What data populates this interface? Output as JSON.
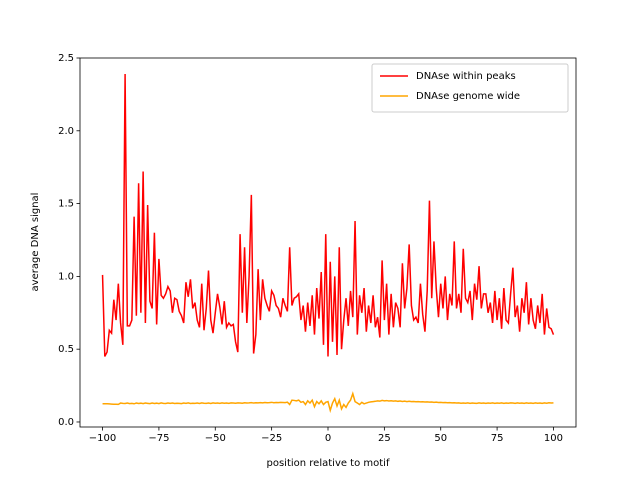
{
  "chart_data": {
    "type": "line",
    "xlabel": "position relative to motif",
    "ylabel": "average DNA signal",
    "legend": "upper right",
    "xlim": [
      -110,
      110
    ],
    "ylim": [
      -0.0345,
      2.5
    ],
    "xticks": [
      {
        "value": -100,
        "label": "−100"
      },
      {
        "value": -75,
        "label": "−75"
      },
      {
        "value": -50,
        "label": "−50"
      },
      {
        "value": -25,
        "label": "−25"
      },
      0,
      25,
      50,
      75,
      100
    ],
    "yticks": [
      {
        "value": 0,
        "label": "0.0"
      },
      0.5,
      {
        "value": 1,
        "label": "1.0"
      },
      1.5,
      {
        "value": 2,
        "label": "2.0"
      },
      2.5
    ],
    "x": [
      -100,
      -99,
      -98,
      -97,
      -96,
      -95,
      -94,
      -93,
      -92,
      -91,
      -90,
      -89,
      -88,
      -87,
      -86,
      -85,
      -84,
      -83,
      -82,
      -81,
      -80,
      -79,
      -78,
      -77,
      -76,
      -75,
      -74,
      -73,
      -72,
      -71,
      -70,
      -69,
      -68,
      -67,
      -66,
      -65,
      -64,
      -63,
      -62,
      -61,
      -60,
      -59,
      -58,
      -57,
      -56,
      -55,
      -54,
      -53,
      -52,
      -51,
      -50,
      -49,
      -48,
      -47,
      -46,
      -45,
      -44,
      -43,
      -42,
      -41,
      -40,
      -39,
      -38,
      -37,
      -36,
      -35,
      -34,
      -33,
      -32,
      -31,
      -30,
      -29,
      -28,
      -27,
      -26,
      -25,
      -24,
      -23,
      -22,
      -21,
      -20,
      -19,
      -18,
      -17,
      -16,
      -15,
      -14,
      -13,
      -12,
      -11,
      -10,
      -9,
      -8,
      -7,
      -6,
      -5,
      -4,
      -3,
      -2,
      -1,
      0,
      1,
      2,
      3,
      4,
      5,
      6,
      7,
      8,
      9,
      10,
      11,
      12,
      13,
      14,
      15,
      16,
      17,
      18,
      19,
      20,
      21,
      22,
      23,
      24,
      25,
      26,
      27,
      28,
      29,
      30,
      31,
      32,
      33,
      34,
      35,
      36,
      37,
      38,
      39,
      40,
      41,
      42,
      43,
      44,
      45,
      46,
      47,
      48,
      49,
      50,
      51,
      52,
      53,
      54,
      55,
      56,
      57,
      58,
      59,
      60,
      61,
      62,
      63,
      64,
      65,
      66,
      67,
      68,
      69,
      70,
      71,
      72,
      73,
      74,
      75,
      76,
      77,
      78,
      79,
      80,
      81,
      82,
      83,
      84,
      85,
      86,
      87,
      88,
      89,
      90,
      91,
      92,
      93,
      94,
      95,
      96,
      97,
      98,
      99,
      100
    ],
    "series": [
      {
        "name": "DNAse within peaks",
        "color": "#ff0000",
        "values": [
          1.01,
          0.45,
          0.48,
          0.63,
          0.61,
          0.84,
          0.7,
          0.95,
          0.68,
          0.53,
          2.39,
          0.66,
          0.66,
          0.7,
          1.41,
          0.73,
          1.64,
          0.75,
          1.72,
          0.68,
          1.49,
          0.83,
          0.78,
          1.3,
          0.67,
          1.12,
          0.87,
          0.85,
          0.88,
          0.93,
          0.9,
          0.75,
          0.85,
          0.84,
          0.76,
          0.73,
          0.68,
          0.96,
          0.86,
          0.98,
          0.78,
          0.82,
          0.7,
          0.65,
          0.95,
          0.63,
          0.78,
          1.04,
          0.7,
          0.61,
          0.75,
          0.88,
          0.79,
          0.67,
          0.83,
          0.65,
          0.68,
          0.66,
          0.67,
          0.55,
          0.48,
          1.29,
          0.75,
          1.2,
          0.68,
          1.0,
          1.56,
          0.47,
          0.6,
          1.05,
          0.7,
          0.98,
          0.85,
          0.8,
          0.76,
          0.9,
          0.87,
          0.8,
          0.78,
          0.72,
          0.85,
          0.8,
          0.76,
          1.2,
          0.8,
          0.85,
          0.86,
          0.88,
          0.7,
          0.8,
          0.62,
          0.82,
          0.66,
          0.87,
          0.6,
          0.92,
          0.71,
          1.03,
          0.53,
          1.29,
          0.45,
          1.1,
          0.55,
          1.0,
          0.46,
          1.2,
          0.5,
          0.7,
          0.85,
          0.66,
          0.9,
          0.72,
          1.38,
          0.6,
          0.87,
          0.75,
          0.92,
          0.62,
          0.8,
          0.68,
          0.87,
          0.65,
          0.72,
          0.58,
          1.11,
          0.7,
          0.95,
          0.6,
          0.88,
          0.65,
          0.82,
          0.78,
          0.65,
          1.09,
          0.78,
          0.92,
          1.22,
          0.8,
          0.7,
          0.72,
          0.68,
          0.95,
          0.74,
          0.62,
          0.9,
          1.52,
          0.85,
          1.24,
          0.92,
          0.72,
          0.95,
          0.78,
          1.0,
          0.7,
          0.88,
          0.8,
          1.24,
          0.78,
          0.88,
          0.75,
          1.19,
          0.85,
          0.82,
          0.9,
          0.7,
          0.95,
          0.84,
          1.07,
          0.78,
          0.88,
          0.88,
          0.75,
          0.82,
          0.68,
          0.9,
          0.7,
          0.85,
          0.64,
          0.92,
          0.7,
          0.68,
          0.88,
          1.06,
          0.72,
          0.8,
          0.62,
          0.85,
          0.75,
          0.96,
          0.67,
          0.85,
          0.7,
          0.64,
          0.8,
          0.68,
          0.88,
          0.6,
          0.78,
          0.65,
          0.64,
          0.6
        ]
      },
      {
        "name": "DNAse genome wide",
        "color": "#ffa500",
        "values": [
          0.125,
          0.125,
          0.125,
          0.124,
          0.123,
          0.122,
          0.122,
          0.121,
          0.13,
          0.128,
          0.127,
          0.13,
          0.126,
          0.128,
          0.125,
          0.13,
          0.127,
          0.129,
          0.126,
          0.13,
          0.128,
          0.126,
          0.13,
          0.127,
          0.129,
          0.126,
          0.131,
          0.128,
          0.127,
          0.13,
          0.128,
          0.13,
          0.127,
          0.129,
          0.128,
          0.126,
          0.13,
          0.128,
          0.131,
          0.127,
          0.129,
          0.128,
          0.13,
          0.127,
          0.131,
          0.129,
          0.128,
          0.13,
          0.127,
          0.131,
          0.129,
          0.13,
          0.128,
          0.131,
          0.129,
          0.13,
          0.128,
          0.131,
          0.13,
          0.129,
          0.131,
          0.13,
          0.129,
          0.132,
          0.13,
          0.131,
          0.133,
          0.13,
          0.132,
          0.131,
          0.133,
          0.131,
          0.134,
          0.132,
          0.133,
          0.135,
          0.132,
          0.134,
          0.133,
          0.135,
          0.134,
          0.133,
          0.136,
          0.12,
          0.15,
          0.148,
          0.145,
          0.15,
          0.135,
          0.14,
          0.12,
          0.145,
          0.13,
          0.15,
          0.105,
          0.14,
          0.125,
          0.145,
          0.12,
          0.135,
          0.14,
          0.08,
          0.13,
          0.16,
          0.11,
          0.15,
          0.09,
          0.12,
          0.1,
          0.13,
          0.15,
          0.195,
          0.14,
          0.13,
          0.12,
          0.135,
          0.125,
          0.13,
          0.135,
          0.138,
          0.14,
          0.142,
          0.145,
          0.143,
          0.148,
          0.145,
          0.147,
          0.144,
          0.146,
          0.143,
          0.145,
          0.142,
          0.144,
          0.141,
          0.143,
          0.14,
          0.142,
          0.14,
          0.141,
          0.139,
          0.14,
          0.138,
          0.139,
          0.137,
          0.138,
          0.136,
          0.137,
          0.135,
          0.136,
          0.134,
          0.135,
          0.133,
          0.134,
          0.132,
          0.133,
          0.131,
          0.132,
          0.13,
          0.131,
          0.129,
          0.13,
          0.129,
          0.131,
          0.128,
          0.13,
          0.129,
          0.128,
          0.131,
          0.129,
          0.13,
          0.128,
          0.13,
          0.129,
          0.131,
          0.128,
          0.13,
          0.129,
          0.131,
          0.128,
          0.13,
          0.129,
          0.131,
          0.13,
          0.128,
          0.131,
          0.129,
          0.13,
          0.128,
          0.131,
          0.129,
          0.13,
          0.128,
          0.131,
          0.129,
          0.13,
          0.128,
          0.131,
          0.129,
          0.132,
          0.13,
          0.131
        ]
      }
    ]
  }
}
